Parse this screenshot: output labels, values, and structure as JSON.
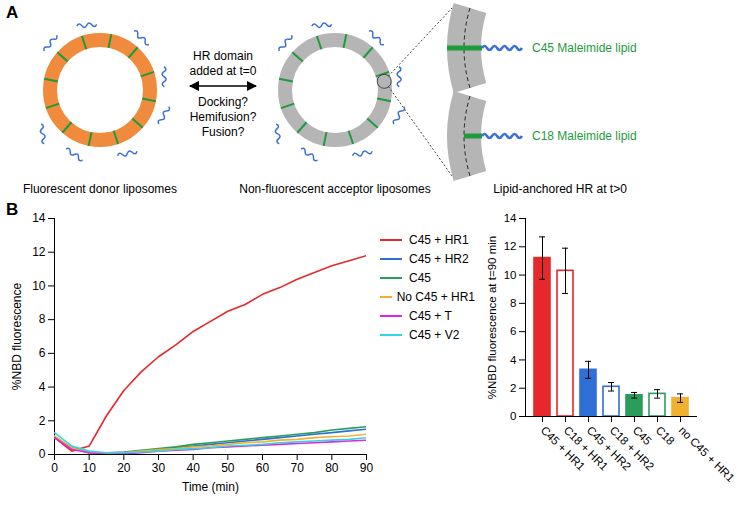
{
  "diagram": {
    "panel_label": "A",
    "arrow_label": [
      "HR domain",
      "added at t=0"
    ],
    "arrow_questions": [
      "Docking?",
      "Hemifusion?",
      "Fusion?"
    ],
    "donor": "Fluorescent donor liposomes",
    "acceptor": "Non-fluorescent acceptor liposomes",
    "inset_title": "Lipid-anchored HR at t>0",
    "insets": [
      "C45 Maleimide lipid",
      "C18 Maleimide lipid"
    ]
  },
  "chart_data": [
    {
      "panel_label": "B",
      "type": "line",
      "x_label": "Time (min)",
      "y_label": "%NBD fluorescence",
      "x": [
        0,
        5,
        10,
        15,
        20,
        25,
        30,
        35,
        40,
        45,
        50,
        55,
        60,
        65,
        70,
        75,
        80,
        85,
        90
      ],
      "xlim": [
        0,
        90
      ],
      "xticks": [
        0,
        10,
        20,
        30,
        40,
        50,
        60,
        70,
        80,
        90
      ],
      "ylim": [
        0,
        14
      ],
      "yticks": [
        0,
        2,
        4,
        6,
        8,
        10,
        12,
        14
      ],
      "legend": "right",
      "series": [
        {
          "name": "C45 + HR1",
          "color": "#e5282b",
          "values": [
            1.0,
            0.2,
            0.5,
            2.3,
            3.8,
            4.9,
            5.8,
            6.5,
            7.3,
            7.9,
            8.5,
            8.9,
            9.5,
            9.9,
            10.4,
            10.8,
            11.2,
            11.5,
            11.8
          ]
        },
        {
          "name": "C45 + HR2",
          "color": "#2f6fd6",
          "values": [
            1.0,
            0.4,
            0.1,
            0.1,
            0.1,
            0.2,
            0.3,
            0.4,
            0.5,
            0.6,
            0.7,
            0.8,
            0.9,
            1.0,
            1.1,
            1.2,
            1.3,
            1.4,
            1.5
          ]
        },
        {
          "name": "C45",
          "color": "#2a9d5c",
          "values": [
            1.0,
            0.4,
            0.1,
            0.1,
            0.15,
            0.25,
            0.35,
            0.45,
            0.6,
            0.7,
            0.8,
            0.9,
            1.0,
            1.1,
            1.2,
            1.3,
            1.45,
            1.55,
            1.65
          ]
        },
        {
          "name": "No C45 + HR1",
          "color": "#f0b22e",
          "values": [
            1.1,
            0.4,
            0.1,
            0.1,
            0.1,
            0.2,
            0.3,
            0.35,
            0.45,
            0.5,
            0.6,
            0.7,
            0.75,
            0.85,
            0.9,
            1.0,
            1.05,
            1.1,
            1.2
          ]
        },
        {
          "name": "C45 + T",
          "color": "#e026de",
          "values": [
            1.0,
            0.3,
            0.1,
            0.0,
            0.05,
            0.1,
            0.2,
            0.25,
            0.3,
            0.4,
            0.45,
            0.5,
            0.55,
            0.6,
            0.65,
            0.7,
            0.75,
            0.8,
            0.85
          ]
        },
        {
          "name": "C45 + V2",
          "color": "#33d6e0",
          "values": [
            1.3,
            0.5,
            0.2,
            0.1,
            0.1,
            0.15,
            0.2,
            0.3,
            0.35,
            0.4,
            0.5,
            0.55,
            0.6,
            0.7,
            0.75,
            0.8,
            0.85,
            0.9,
            1.0
          ]
        }
      ]
    },
    {
      "type": "bar",
      "y_label": "%NBD fluorescence at t=90 min",
      "categories": [
        "C45 + HR1",
        "C18 + HR1",
        "C45 + HR2",
        "C18 + HR2",
        "C45",
        "C18",
        "no C45 + HR1"
      ],
      "values": [
        11.2,
        10.3,
        3.3,
        2.1,
        1.5,
        1.6,
        1.3
      ],
      "errors": [
        1.5,
        1.6,
        0.6,
        0.3,
        0.2,
        0.3,
        0.3
      ],
      "colors": [
        "#e5282b",
        "#e5282b",
        "#2f6fd6",
        "#2f6fd6",
        "#2a9d5c",
        "#2a9d5c",
        "#f0b22e"
      ],
      "ylim": [
        0,
        14
      ],
      "yticks": [
        0,
        2,
        4,
        6,
        8,
        10,
        12,
        14
      ]
    }
  ]
}
